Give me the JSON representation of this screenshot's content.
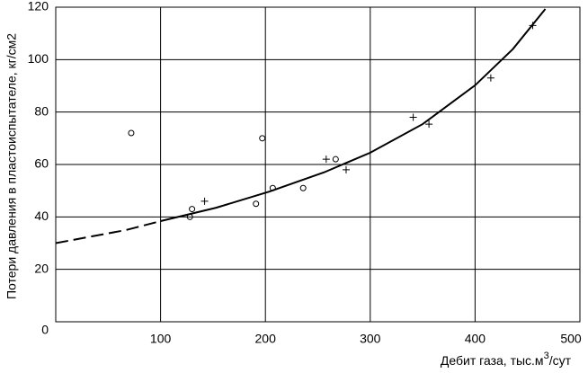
{
  "chart_data": {
    "type": "scatter",
    "x_label": {
      "text": "Дебит газа, тыс.м",
      "sup": "3",
      "tail": "/сут"
    },
    "y_label": "Потери давления в пластоиспытателе, кг/см2",
    "xlim": [
      0,
      500
    ],
    "ylim": [
      0,
      120
    ],
    "xticks": [
      100,
      200,
      300,
      400,
      500
    ],
    "yticks": [
      0,
      20,
      40,
      60,
      80,
      100,
      120
    ],
    "grid": true,
    "series": [
      {
        "marker": "circle",
        "color": "#000000",
        "x": [
          72,
          128,
          130,
          191,
          197,
          207,
          236,
          267
        ],
        "values": [
          72,
          40,
          43,
          45,
          70,
          51,
          51,
          62
        ]
      },
      {
        "marker": "plus",
        "color": "#000000",
        "x": [
          142,
          258,
          277,
          341,
          356,
          415,
          455
        ],
        "values": [
          46,
          62,
          58,
          78,
          75.4,
          93,
          113
        ]
      }
    ],
    "lines": [
      {
        "style": "dashed",
        "color": "#000000",
        "x": [
          0,
          67,
          100
        ],
        "values": [
          30,
          35,
          38.4
        ]
      },
      {
        "style": "solid",
        "color": "#000000",
        "x": [
          100,
          153,
          204,
          256,
          300,
          350,
          400,
          436,
          467
        ],
        "values": [
          38.4,
          43.5,
          49.7,
          57,
          64.5,
          75.4,
          90.2,
          104,
          119.3
        ]
      }
    ]
  }
}
